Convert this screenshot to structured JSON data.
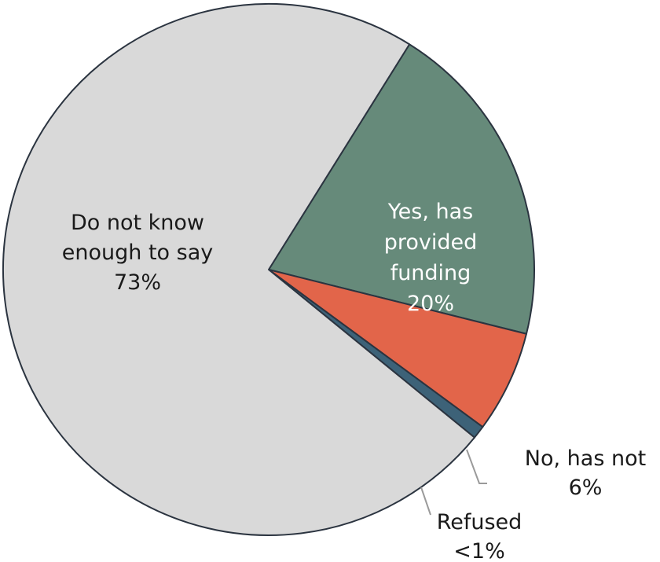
{
  "chart_data": {
    "type": "pie",
    "start_angle_deg": 32,
    "direction": "clockwise",
    "slices": [
      {
        "label_lines": [
          "Yes, has",
          "provided",
          "funding"
        ],
        "value_label": "20%",
        "value": 20,
        "color": "#668a7a",
        "label_color": "#ffffff",
        "label_position": "inside"
      },
      {
        "label_lines": [
          "No, has not"
        ],
        "value_label": "6%",
        "value": 6.2,
        "color": "#e2654a",
        "label_color": "#1a1a1a",
        "label_position": "outside"
      },
      {
        "label_lines": [
          "Refused"
        ],
        "value_label": "<1%",
        "value": 0.8,
        "color": "#3d6278",
        "label_color": "#1a1a1a",
        "label_position": "outside"
      },
      {
        "label_lines": [
          "Do not know",
          "enough to say"
        ],
        "value_label": "73%",
        "value": 73,
        "color": "#d9d9d9",
        "label_color": "#1a1a1a",
        "label_position": "inside"
      }
    ]
  }
}
